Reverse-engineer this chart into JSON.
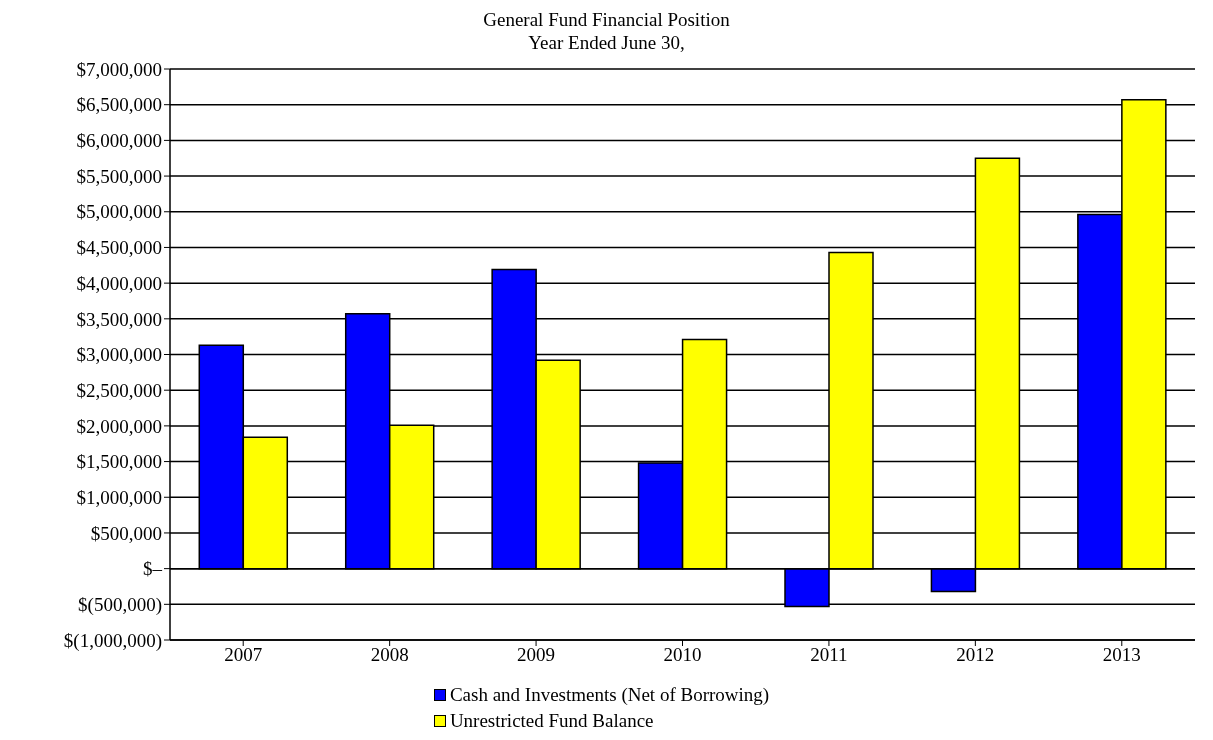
{
  "chart_data": {
    "type": "bar",
    "title": "General Fund Financial Position",
    "subtitle": "Year Ended June 30,",
    "categories": [
      "2007",
      "2008",
      "2009",
      "2010",
      "2011",
      "2012",
      "2013"
    ],
    "series": [
      {
        "name": "Cash and Investments (Net of Borrowing)",
        "color": "#0000ff",
        "values": [
          3130000,
          3570000,
          4190000,
          1480000,
          -530000,
          -320000,
          4960000
        ]
      },
      {
        "name": "Unrestricted Fund Balance",
        "color": "#ffff00",
        "values": [
          1840000,
          2010000,
          2920000,
          3210000,
          4430000,
          5750000,
          6570000
        ]
      }
    ],
    "ylim": [
      -1000000,
      7000000
    ],
    "yticks": [
      {
        "value": -1000000,
        "label": "$(1,000,000)"
      },
      {
        "value": -500000,
        "label": "$(500,000)"
      },
      {
        "value": 0,
        "label": "$–"
      },
      {
        "value": 500000,
        "label": "$500,000"
      },
      {
        "value": 1000000,
        "label": "$1,000,000"
      },
      {
        "value": 1500000,
        "label": "$1,500,000"
      },
      {
        "value": 2000000,
        "label": "$2,000,000"
      },
      {
        "value": 2500000,
        "label": "$2,500,000"
      },
      {
        "value": 3000000,
        "label": "$3,000,000"
      },
      {
        "value": 3500000,
        "label": "$3,500,000"
      },
      {
        "value": 4000000,
        "label": "$4,000,000"
      },
      {
        "value": 4500000,
        "label": "$4,500,000"
      },
      {
        "value": 5000000,
        "label": "$5,000,000"
      },
      {
        "value": 5500000,
        "label": "$5,500,000"
      },
      {
        "value": 6000000,
        "label": "$6,000,000"
      },
      {
        "value": 6500000,
        "label": "$6,500,000"
      },
      {
        "value": 7000000,
        "label": "$7,000,000"
      }
    ],
    "grid": "y",
    "legend": "bottom"
  }
}
